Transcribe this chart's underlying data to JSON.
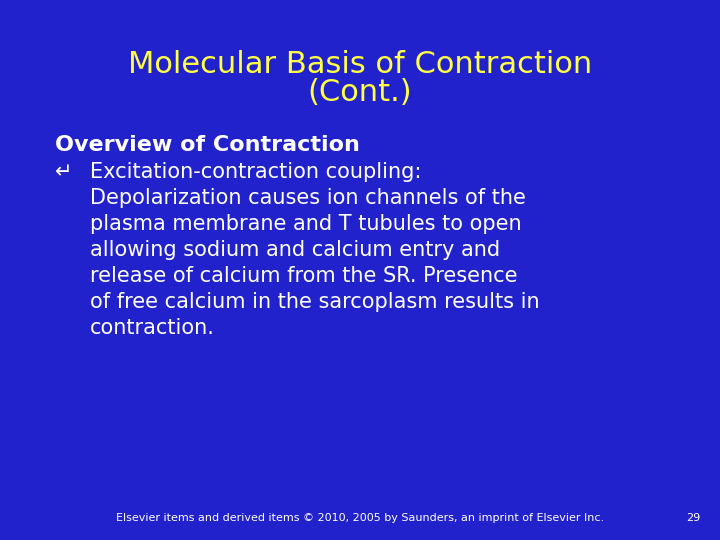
{
  "background_color": "#2222CC",
  "title_line1": "Molecular Basis of Contraction",
  "title_line2": "(Cont.)",
  "title_color": "#FFFF44",
  "title_fontsize": 22,
  "section_header": "Overview of Contraction",
  "section_header_color": "#FFFFFF",
  "section_header_fontsize": 16,
  "bullet_lines": [
    "Excitation-contraction coupling:",
    "Depolarization causes ion channels of the",
    "plasma membrane and T tubules to open",
    "allowing sodium and calcium entry and",
    "release of calcium from the SR. Presence",
    "of free calcium in the sarcoplasm results in",
    "contraction."
  ],
  "bullet_color": "#FFFFFF",
  "bullet_fontsize": 15,
  "footer_text": "Elsevier items and derived items © 2010, 2005 by Saunders, an imprint of Elsevier Inc.",
  "footer_page": "29",
  "footer_color": "#FFFFFF",
  "footer_fontsize": 8
}
